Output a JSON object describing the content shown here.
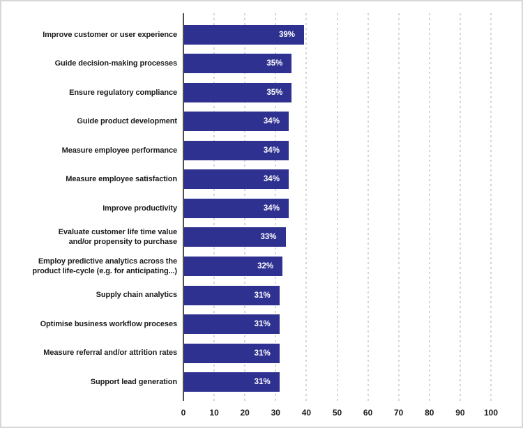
{
  "chart_data": {
    "type": "bar",
    "orientation": "horizontal",
    "title": "",
    "xlabel": "",
    "ylabel": "",
    "categories": [
      "Improve customer or user experience",
      "Guide decision-making processes",
      "Ensure regulatory compliance",
      "Guide product development",
      "Measure employee performance",
      "Measure employee satisfaction",
      "Improve productivity",
      "Evaluate customer life time value\nand/or propensity to purchase",
      "Employ predictive analytics across the\nproduct life-cycle (e.g. for anticipating...)",
      "Supply chain analytics",
      "Optimise business workflow proceses",
      "Measure referral and/or attrition rates",
      "Support lead generation"
    ],
    "values": [
      39,
      35,
      35,
      34,
      34,
      34,
      34,
      33,
      32,
      31,
      31,
      31,
      31
    ],
    "value_labels": [
      "39%",
      "35%",
      "35%",
      "34%",
      "34%",
      "34%",
      "34%",
      "33%",
      "32%",
      "31%",
      "31%",
      "31%",
      "31%"
    ],
    "xlim": [
      0,
      100
    ],
    "x_ticks": [
      0,
      10,
      20,
      30,
      40,
      50,
      60,
      70,
      80,
      90,
      100
    ],
    "grid": "vertical-dashed",
    "legend": "none",
    "colors": {
      "bar": "#2f3191",
      "grid": "#d6d6d6",
      "axis": "#4f4f4f",
      "category_label": "#1b1b1b",
      "tick_label": "#1b1b1b",
      "value_label": "#ffffff",
      "frame_border": "#d8d8d8",
      "background": "#ffffff"
    }
  }
}
